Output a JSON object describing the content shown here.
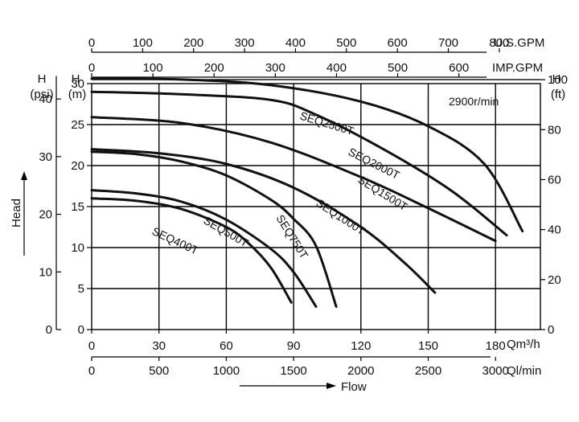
{
  "chart_data": {
    "type": "line",
    "title": "",
    "speed_label": "2900r/min",
    "x": {
      "unit": "m³/h",
      "range": [
        0,
        200
      ],
      "ticks": [
        0,
        30,
        60,
        90,
        120,
        150,
        180
      ],
      "unit_label": "Qm³/h"
    },
    "x_secondary": [
      {
        "name": "U.S.GPM",
        "ticks": [
          0,
          100,
          200,
          300,
          400,
          500,
          600,
          700,
          800
        ],
        "to_primary_factor": 0.2271
      },
      {
        "name": "IMP.GPM",
        "ticks": [
          0,
          100,
          200,
          300,
          400,
          500,
          600
        ],
        "to_primary_factor": 0.2728
      },
      {
        "name": "Ql/min",
        "ticks": [
          0,
          500,
          1000,
          1500,
          2000,
          2500,
          3000
        ],
        "to_primary_factor": 0.06
      }
    ],
    "y": {
      "unit": "m",
      "range": [
        0,
        30
      ],
      "ticks": [
        0,
        5,
        10,
        15,
        20,
        25,
        30
      ],
      "unit_label": "(m)",
      "axis_letter": "H"
    },
    "y_secondary": [
      {
        "name": "psi",
        "unit_label": "(psi)",
        "axis_letter": "H",
        "ticks": [
          0,
          10,
          20,
          30,
          40
        ],
        "to_primary_factor": 0.7031
      },
      {
        "name": "ft",
        "unit_label": "(ft)",
        "axis_letter": "H",
        "ticks": [
          0,
          20,
          40,
          60,
          80,
          100
        ],
        "to_primary_factor": 0.3048
      }
    ],
    "axis_titles": {
      "y": "Head",
      "x": "Flow"
    },
    "series": [
      {
        "name": "SEQ400T",
        "x": [
          0,
          20,
          40,
          60,
          70,
          80,
          89
        ],
        "y": [
          16.0,
          15.7,
          14.7,
          12.5,
          10.5,
          7.5,
          3.3
        ]
      },
      {
        "name": "SEQ500T",
        "x": [
          0,
          20,
          40,
          60,
          80,
          90,
          100
        ],
        "y": [
          17.0,
          16.6,
          15.6,
          13.4,
          9.8,
          7.0,
          2.8
        ]
      },
      {
        "name": "SEQ750T",
        "x": [
          0,
          20,
          40,
          60,
          80,
          90,
          100,
          109
        ],
        "y": [
          21.7,
          21.4,
          20.5,
          18.8,
          15.8,
          13.5,
          10.2,
          2.8
        ]
      },
      {
        "name": "SEQ1000T",
        "x": [
          0,
          30,
          60,
          90,
          120,
          140,
          153
        ],
        "y": [
          22.0,
          21.5,
          20.2,
          17.3,
          12.5,
          8.0,
          4.5
        ]
      },
      {
        "name": "SEQ1500T",
        "x": [
          0,
          40,
          80,
          120,
          150,
          180
        ],
        "y": [
          25.9,
          25.2,
          22.8,
          18.6,
          14.8,
          10.8
        ]
      },
      {
        "name": "SEQ2000T",
        "x": [
          0,
          40,
          80,
          100,
          130,
          160,
          185
        ],
        "y": [
          29.0,
          28.7,
          28.0,
          26.2,
          22.0,
          17.0,
          11.5
        ]
      },
      {
        "name": "SEQ2500T",
        "x": [
          0,
          40,
          80,
          120,
          150,
          175,
          192
        ],
        "y": [
          30.6,
          30.5,
          29.8,
          27.8,
          24.8,
          20.2,
          12.0
        ]
      }
    ],
    "grid": true,
    "legend": "labels on curves"
  }
}
